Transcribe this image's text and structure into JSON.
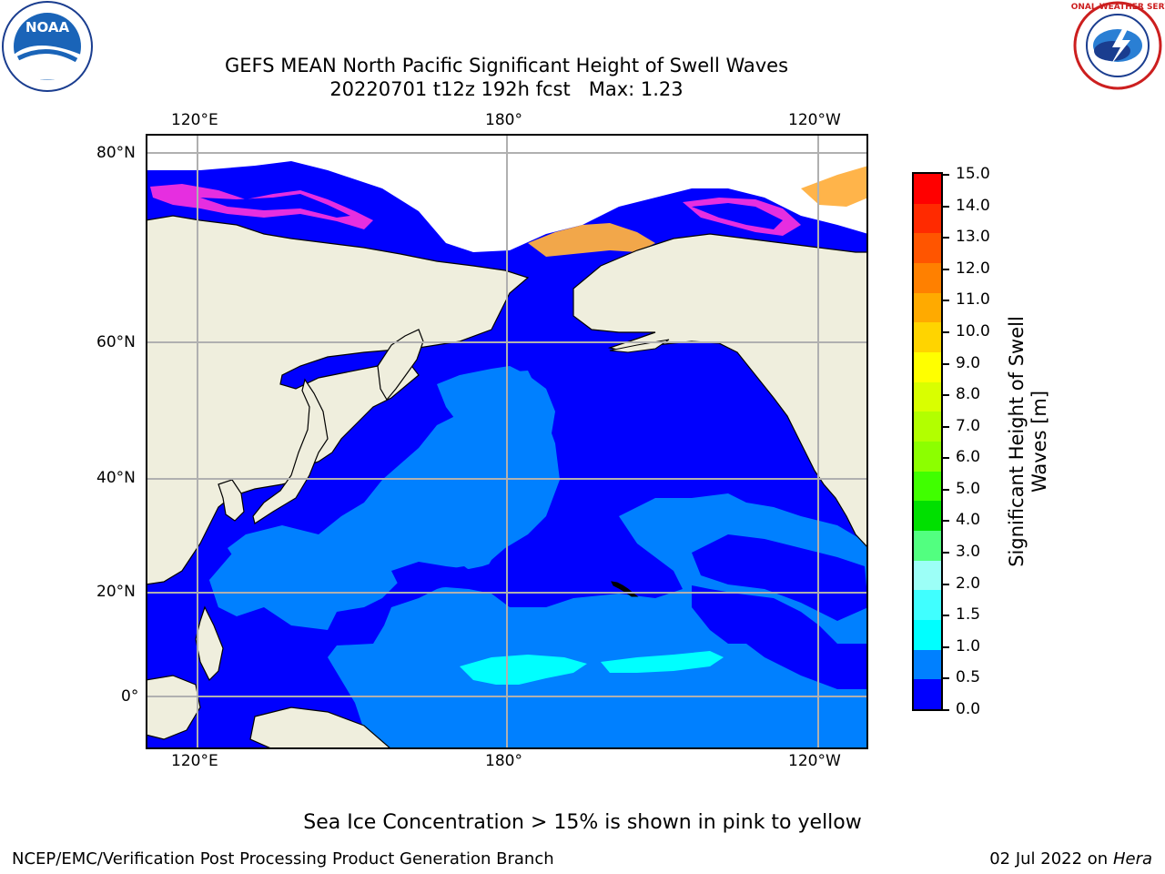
{
  "header": {
    "title_line1": "GEFS MEAN North Pacific Significant Height of Swell Waves",
    "title_line2": "20220701 t12z 192h fcst   Max: 1.23",
    "logo_left_text": "NOAA",
    "logo_right_text": "NATIONAL WEATHER SERVICE"
  },
  "map": {
    "top_lon_labels": [
      "120°E",
      "180°",
      "120°W"
    ],
    "bottom_lon_labels": [
      "120°E",
      "180°",
      "120°W"
    ],
    "lat_labels": [
      "80°N",
      "60°N",
      "40°N",
      "20°N",
      "0°"
    ],
    "colors": {
      "land": "#efeedd",
      "ice_free_white": "#ffffff",
      "band_0_0p5": "#0000fe",
      "band_0p5_1": "#0080ff",
      "band_1_1p5": "#00ffff",
      "sea_ice_pink": "#ff33dd",
      "sea_ice_orange": "#ffb040",
      "grid": "#b0b0b0",
      "coast": "#000000"
    }
  },
  "colorbar": {
    "title_line1": "Significant Height of Swell",
    "title_line2": "Waves [m]",
    "labels": [
      "15.0",
      "14.0",
      "13.0",
      "12.0",
      "11.0",
      "10.0",
      "9.0",
      "8.0",
      "7.0",
      "6.0",
      "5.0",
      "4.0",
      "3.0",
      "2.0",
      "1.5",
      "1.0",
      "0.5",
      "0.0"
    ],
    "colors_top_to_bottom": [
      "#ff0000",
      "#ff2a00",
      "#ff5500",
      "#ff8000",
      "#ffaa00",
      "#ffd400",
      "#ffff00",
      "#d9ff00",
      "#b2ff00",
      "#8cff00",
      "#40ff00",
      "#00e000",
      "#52ff80",
      "#9cfff7",
      "#40ffff",
      "#00ffff",
      "#0080ff",
      "#0000ff"
    ]
  },
  "note": "Sea Ice Concentration > 15% is shown in pink to yellow",
  "footer": {
    "left": "NCEP/EMC/Verification Post Processing Product Generation Branch",
    "right_prefix": "02 Jul 2022 on ",
    "right_host": "Hera"
  }
}
